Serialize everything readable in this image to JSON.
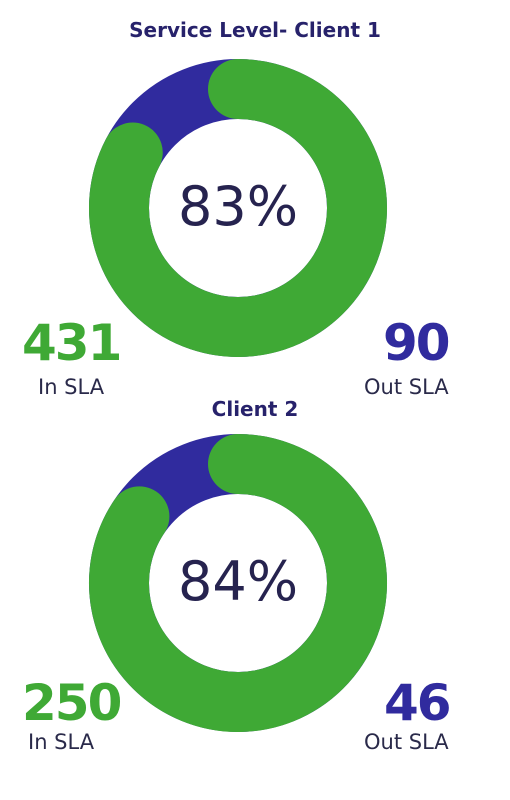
{
  "colors": {
    "in_sla": "#3fa935",
    "out_sla": "#302b9e",
    "title": "#27226b",
    "center_text": "#26234f"
  },
  "chart_data": [
    {
      "type": "pie",
      "title": "Service Level- Client 1",
      "center_label": "83%",
      "categories": [
        "In SLA",
        "Out SLA"
      ],
      "values": [
        431,
        90
      ],
      "labels": {
        "in_value": "431",
        "in_caption": "In SLA",
        "out_value": "90",
        "out_caption": "Out SLA"
      }
    },
    {
      "type": "pie",
      "title": "Client 2",
      "center_label": "84%",
      "categories": [
        "In SLA",
        "Out SLA"
      ],
      "values": [
        250,
        46
      ],
      "labels": {
        "in_value": "250",
        "in_caption": "In SLA",
        "out_value": "46",
        "out_caption": "Out SLA"
      }
    }
  ]
}
